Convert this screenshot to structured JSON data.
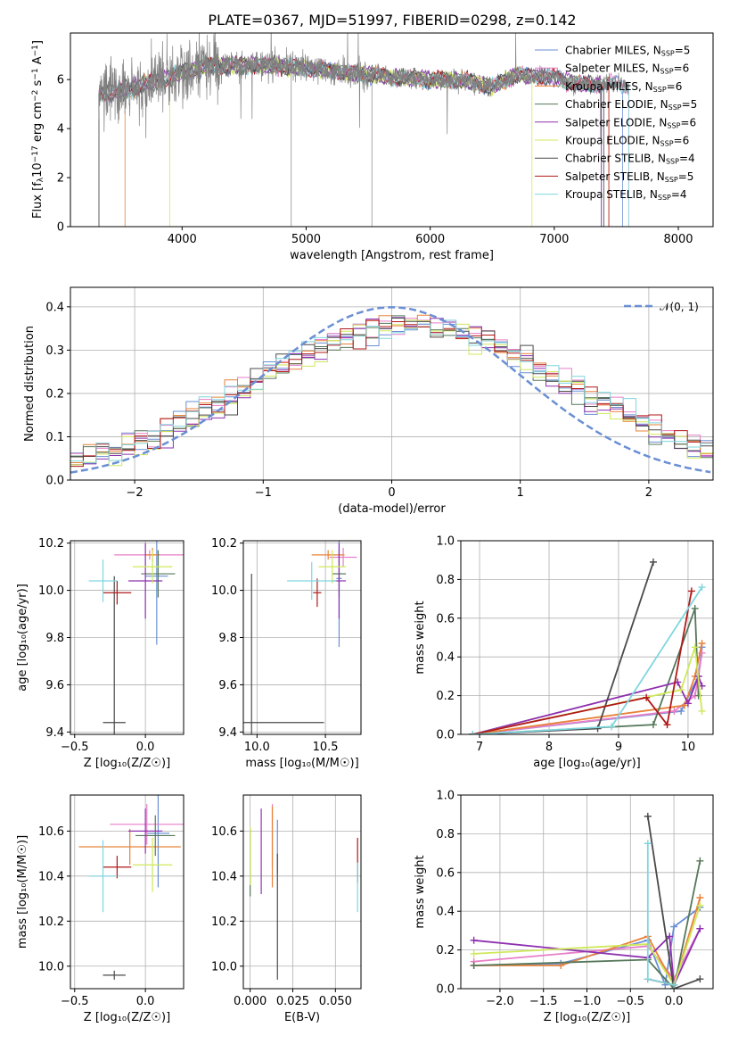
{
  "figure_title": "PLATE=0367, MJD=51997, FIBERID=0298, z=0.142",
  "models": [
    {
      "name": "Chabrier MILES, N",
      "sub": "SSP",
      "tail": "=5",
      "color": "#6a8fd4"
    },
    {
      "name": "Salpeter MILES, N",
      "sub": "SSP",
      "tail": "=6",
      "color": "#e77fc8"
    },
    {
      "name": "Kroupa MILES, N",
      "sub": "SSP",
      "tail": "=6",
      "color": "#e8823a"
    },
    {
      "name": "Chabrier ELODIE, N",
      "sub": "SSP",
      "tail": "=5",
      "color": "#55775a"
    },
    {
      "name": "Salpeter ELODIE, N",
      "sub": "SSP",
      "tail": "=6",
      "color": "#8e30b0"
    },
    {
      "name": "Kroupa ELODIE, N",
      "sub": "SSP",
      "tail": "=6",
      "color": "#cfe85a"
    },
    {
      "name": "Chabrier STELIB, N",
      "sub": "SSP",
      "tail": "=4",
      "color": "#4a4a4a"
    },
    {
      "name": "Salpeter STELIB, N",
      "sub": "SSP",
      "tail": "=5",
      "color": "#b01818"
    },
    {
      "name": "Kroupa STELIB, N",
      "sub": "SSP",
      "tail": "=4",
      "color": "#7fd6de"
    }
  ],
  "chart_data": [
    {
      "type": "line",
      "id": "spectrum",
      "title": "PLATE=0367, MJD=51997, FIBERID=0298, z=0.142",
      "xlabel": "wavelength [Angstrom, rest frame]",
      "ylabel_parts": [
        "Flux [f",
        "λ",
        "10",
        "−17",
        " erg cm",
        "−2",
        " s",
        "−1",
        " A",
        "−1",
        "]"
      ],
      "xlim": [
        3100,
        8280
      ],
      "ylim": [
        0,
        7.9
      ],
      "xticks": [
        4000,
        5000,
        6000,
        7000,
        8000
      ],
      "yticks": [
        0,
        2,
        4,
        6
      ],
      "observed_color": "#808080",
      "observed_range": [
        3330,
        7600
      ],
      "spectrum_profile": {
        "x": [
          3330,
          3500,
          3700,
          3900,
          4000,
          4200,
          4500,
          4800,
          5100,
          5400,
          5700,
          6000,
          6300,
          6500,
          6700,
          7000,
          7200,
          7600
        ],
        "y": [
          5.45,
          5.5,
          5.8,
          6.1,
          6.3,
          6.55,
          6.6,
          6.55,
          6.4,
          6.25,
          6.1,
          6.0,
          5.95,
          5.7,
          6.2,
          6.1,
          5.8,
          5.8
        ]
      },
      "model_spans": [
        [
          3330,
          7550
        ],
        [
          3330,
          7600
        ],
        [
          3540,
          7440
        ],
        [
          3330,
          7380
        ],
        [
          3330,
          7380
        ],
        [
          3900,
          6820
        ],
        [
          3330,
          7400
        ],
        [
          3330,
          7440
        ],
        [
          3330,
          7600
        ]
      ]
    },
    {
      "type": "step",
      "id": "residuals",
      "xlabel": "(data-model)/error",
      "ylabel": "Normed distribution",
      "xlim": [
        -2.5,
        2.5
      ],
      "ylim": [
        0,
        0.445
      ],
      "xticks": [
        -2,
        -1,
        0,
        1,
        2
      ],
      "yticks": [
        0.0,
        0.1,
        0.2,
        0.3,
        0.4
      ],
      "bin_width": 0.1,
      "reference": {
        "label": "𝒩(0, 1)",
        "mean": 0,
        "sigma": 1,
        "color": "#6a8fd4"
      }
    },
    {
      "type": "errorbar",
      "id": "age-vs-Z",
      "xlabel": "Z [log₁₀(Z/Z☉)]",
      "ylabel": "age  [log₁₀(age/yr)]",
      "xlim": [
        -0.53,
        0.27
      ],
      "ylim": [
        9.39,
        10.21
      ],
      "xticks": [
        -0.5,
        0.0
      ],
      "yticks": [
        9.4,
        9.6,
        9.8,
        10.0,
        10.2
      ],
      "points": [
        {
          "x": 0.08,
          "xerr": 0.08,
          "y": 10.06,
          "yerr": 0.29
        },
        {
          "x": 0.03,
          "xerr": 0.25,
          "y": 10.15,
          "yerr": 0.02
        },
        {
          "x": 0.05,
          "xerr": 0.05,
          "y": 10.15,
          "yerr": 0.03
        },
        {
          "x": 0.09,
          "xerr": 0.12,
          "y": 10.07,
          "yerr": 0.1
        },
        {
          "x": 0.0,
          "xerr": 0.12,
          "y": 10.04,
          "yerr": 0.16
        },
        {
          "x": 0.05,
          "xerr": 0.14,
          "y": 10.1,
          "yerr": 0.07
        },
        {
          "x": -0.22,
          "xerr": 0.08,
          "y": 9.44,
          "yerr": 0.62
        },
        {
          "x": -0.2,
          "xerr": 0.1,
          "y": 9.99,
          "yerr": 0.05
        },
        {
          "x": -0.3,
          "xerr": 0.1,
          "y": 10.04,
          "yerr": 0.09
        }
      ]
    },
    {
      "type": "errorbar",
      "id": "age-vs-mass",
      "xlabel": "mass [log₁₀(M/M☉)]",
      "ylabel": "",
      "xlim": [
        9.9,
        10.76
      ],
      "ylim": [
        9.39,
        10.21
      ],
      "xticks": [
        10.0,
        10.5
      ],
      "yticks": [
        9.4,
        9.6,
        9.8,
        10.0,
        10.2
      ],
      "points": [
        {
          "x": 10.6,
          "xerr": 0.02,
          "y": 10.05,
          "yerr": 0.29
        },
        {
          "x": 10.63,
          "xerr": 0.1,
          "y": 10.14,
          "yerr": 0.04
        },
        {
          "x": 10.52,
          "xerr": 0.12,
          "y": 10.15,
          "yerr": 0.02
        },
        {
          "x": 10.6,
          "xerr": 0.05,
          "y": 10.07,
          "yerr": 0.1
        },
        {
          "x": 10.6,
          "xerr": 0.05,
          "y": 10.04,
          "yerr": 0.16
        },
        {
          "x": 10.55,
          "xerr": 0.1,
          "y": 10.1,
          "yerr": 0.07
        },
        {
          "x": 9.96,
          "xerr": 0.53,
          "y": 9.44,
          "yerr": 0.63
        },
        {
          "x": 10.44,
          "xerr": 0.03,
          "y": 9.99,
          "yerr": 0.06
        },
        {
          "x": 10.4,
          "xerr": 0.18,
          "y": 10.04,
          "yerr": 0.08
        }
      ]
    },
    {
      "type": "line",
      "id": "weight-vs-age",
      "xlabel": "age  [log₁₀(age/yr)]",
      "ylabel": "mass weight",
      "xlim": [
        6.73,
        10.36
      ],
      "ylim": [
        0,
        1.0
      ],
      "xticks": [
        7,
        8,
        9,
        10
      ],
      "yticks": [
        0.0,
        0.2,
        0.4,
        0.6,
        0.8,
        1.0
      ],
      "series": [
        {
          "x": [
            6.9,
            9.9,
            10.15,
            10.2
          ],
          "y": [
            0.0,
            0.12,
            0.3,
            0.45
          ]
        },
        {
          "x": [
            6.9,
            9.8,
            10.1,
            10.15,
            10.2
          ],
          "y": [
            0.0,
            0.12,
            0.2,
            0.3,
            0.42
          ]
        },
        {
          "x": [
            6.9,
            9.95,
            10.1,
            10.2
          ],
          "y": [
            0.0,
            0.15,
            0.3,
            0.47
          ]
        },
        {
          "x": [
            6.9,
            9.5,
            10.1,
            10.15
          ],
          "y": [
            0.0,
            0.05,
            0.65,
            0.2
          ]
        },
        {
          "x": [
            6.9,
            9.85,
            10.0,
            10.15,
            10.2
          ],
          "y": [
            0.0,
            0.27,
            0.16,
            0.3,
            0.25
          ]
        },
        {
          "x": [
            6.9,
            9.9,
            10.1,
            10.2
          ],
          "y": [
            0.0,
            0.23,
            0.45,
            0.12
          ]
        },
        {
          "x": [
            6.9,
            8.7,
            9.5
          ],
          "y": [
            0.0,
            0.03,
            0.89
          ]
        },
        {
          "x": [
            6.9,
            9.4,
            9.7,
            10.05
          ],
          "y": [
            0.0,
            0.19,
            0.05,
            0.74
          ]
        },
        {
          "x": [
            6.9,
            8.9,
            10.2
          ],
          "y": [
            0.0,
            0.04,
            0.76
          ]
        }
      ]
    },
    {
      "type": "errorbar",
      "id": "mass-vs-Z",
      "xlabel": "Z [log₁₀(Z/Z☉)]",
      "ylabel": "mass [log₁₀(M/M☉)]",
      "xlim": [
        -0.53,
        0.27
      ],
      "ylim": [
        9.9,
        10.76
      ],
      "xticks": [
        -0.5,
        0.0
      ],
      "yticks": [
        10.0,
        10.2,
        10.4,
        10.6
      ],
      "points": [
        {
          "x": 0.09,
          "xerr": 0.08,
          "y": 10.59,
          "yerr": 0.24
        },
        {
          "x": 0.01,
          "xerr": 0.26,
          "y": 10.63,
          "yerr": 0.09
        },
        {
          "x": -0.11,
          "xerr": 0.36,
          "y": 10.53,
          "yerr": 0.08
        },
        {
          "x": 0.07,
          "xerr": 0.14,
          "y": 10.58,
          "yerr": 0.09
        },
        {
          "x": 0.0,
          "xerr": 0.12,
          "y": 10.6,
          "yerr": 0.1
        },
        {
          "x": 0.05,
          "xerr": 0.14,
          "y": 10.45,
          "yerr": 0.12
        },
        {
          "x": -0.22,
          "xerr": 0.08,
          "y": 9.96,
          "yerr": 0.02
        },
        {
          "x": -0.2,
          "xerr": 0.1,
          "y": 10.44,
          "yerr": 0.05
        },
        {
          "x": -0.3,
          "xerr": 0.1,
          "y": 10.4,
          "yerr": 0.16
        }
      ]
    },
    {
      "type": "errorbar",
      "id": "mass-vs-EBV",
      "xlabel": "E(B-V)",
      "ylabel": "",
      "xlim": [
        -0.004,
        0.065
      ],
      "ylim": [
        9.9,
        10.76
      ],
      "xticks": [
        0.0,
        0.025,
        0.05
      ],
      "xtick_labels": [
        "0.000",
        "0.025",
        "0.050"
      ],
      "yticks": [
        10.0,
        10.2,
        10.4,
        10.6
      ],
      "points": [
        {
          "x": 0.016,
          "xerr": 0,
          "y": 10.53,
          "yerr": 0.12
        },
        {
          "x": 0.013,
          "xerr": 0,
          "y": 10.58,
          "yerr": 0.14
        },
        {
          "x": 0.013,
          "xerr": 0,
          "y": 10.53,
          "yerr": 0.18
        },
        {
          "x": 0.0,
          "xerr": 0,
          "y": 10.46,
          "yerr": 0.15
        },
        {
          "x": 0.0065,
          "xerr": 0,
          "y": 10.51,
          "yerr": 0.19
        },
        {
          "x": 0.0,
          "xerr": 0,
          "y": 10.49,
          "yerr": 0.13
        },
        {
          "x": 0.016,
          "xerr": 0,
          "y": 10.22,
          "yerr": 0.28
        },
        {
          "x": 0.063,
          "xerr": 0,
          "y": 10.47,
          "yerr": 0.1
        },
        {
          "x": 0.063,
          "xerr": 0,
          "y": 10.35,
          "yerr": 0.11
        }
      ]
    },
    {
      "type": "line",
      "id": "weight-vs-Z",
      "xlabel": "Z [log₁₀(Z/Z☉)]",
      "ylabel": "mass weight",
      "xlim": [
        -2.45,
        0.45
      ],
      "ylim": [
        0,
        1.0
      ],
      "xticks": [
        -2.0,
        -1.5,
        -1.0,
        -0.5,
        0.0
      ],
      "yticks": [
        0.0,
        0.2,
        0.4,
        0.6,
        0.8,
        1.0
      ],
      "series": [
        {
          "x": [
            -2.3,
            -1.3,
            -0.3,
            -0.1,
            0.0,
            0.3
          ],
          "y": [
            0.12,
            0.13,
            0.25,
            0.02,
            0.32,
            0.42
          ]
        },
        {
          "x": [
            -2.3,
            -0.3,
            0.0,
            0.3
          ],
          "y": [
            0.14,
            0.22,
            0.05,
            0.31
          ]
        },
        {
          "x": [
            -2.3,
            -1.3,
            -0.3,
            0.0,
            0.3
          ],
          "y": [
            0.12,
            0.12,
            0.27,
            0.02,
            0.47
          ]
        },
        {
          "x": [
            -2.3,
            -0.3,
            0.0,
            0.3
          ],
          "y": [
            0.12,
            0.15,
            0.0,
            0.66
          ]
        },
        {
          "x": [
            -2.3,
            -0.3,
            -0.05,
            0.0,
            0.3
          ],
          "y": [
            0.25,
            0.16,
            0.27,
            0.02,
            0.31
          ]
        },
        {
          "x": [
            -2.3,
            -0.3,
            0.0,
            0.3
          ],
          "y": [
            0.18,
            0.23,
            0.02,
            0.43
          ]
        },
        {
          "x": [
            -0.3,
            0.0,
            0.3
          ],
          "y": [
            0.89,
            0.0,
            0.05
          ]
        },
        {
          "x": [
            -0.3,
            0.0
          ],
          "y": [
            0.05,
            0.02
          ]
        },
        {
          "x": [
            -0.3,
            -0.3,
            0.0
          ],
          "y": [
            0.75,
            0.05,
            0.02
          ]
        }
      ]
    }
  ]
}
